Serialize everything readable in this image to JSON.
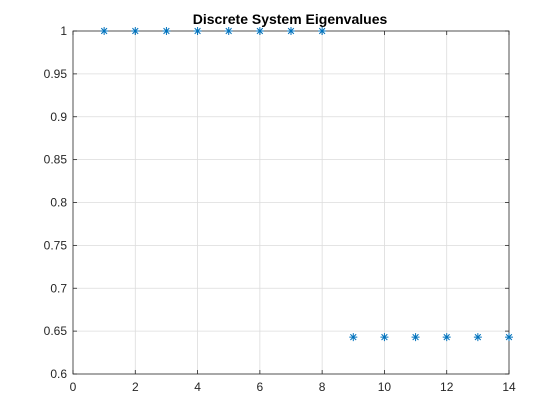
{
  "chart_data": {
    "type": "scatter",
    "title": "Discrete System Eigenvalues",
    "xlabel": "",
    "ylabel": "",
    "xlim": [
      0,
      14
    ],
    "ylim": [
      0.6,
      1
    ],
    "grid": true,
    "marker": "asterisk",
    "x_ticks": [
      "0",
      "2",
      "4",
      "6",
      "8",
      "10",
      "12",
      "14"
    ],
    "y_ticks": [
      "0.6",
      "0.65",
      "0.7",
      "0.75",
      "0.8",
      "0.85",
      "0.9",
      "0.95",
      "1"
    ],
    "series": [
      {
        "x": [
          1,
          2,
          3,
          4,
          5,
          6,
          7,
          8,
          9,
          10,
          11,
          12,
          13,
          14
        ],
        "y": [
          1,
          1,
          1,
          1,
          1,
          1,
          1,
          1,
          0.643,
          0.643,
          0.643,
          0.643,
          0.643,
          0.643
        ]
      }
    ]
  },
  "colors": {
    "marker": "#0072BD",
    "grid": "#dcdcdc",
    "axis": "#262626",
    "text": "#262626"
  }
}
